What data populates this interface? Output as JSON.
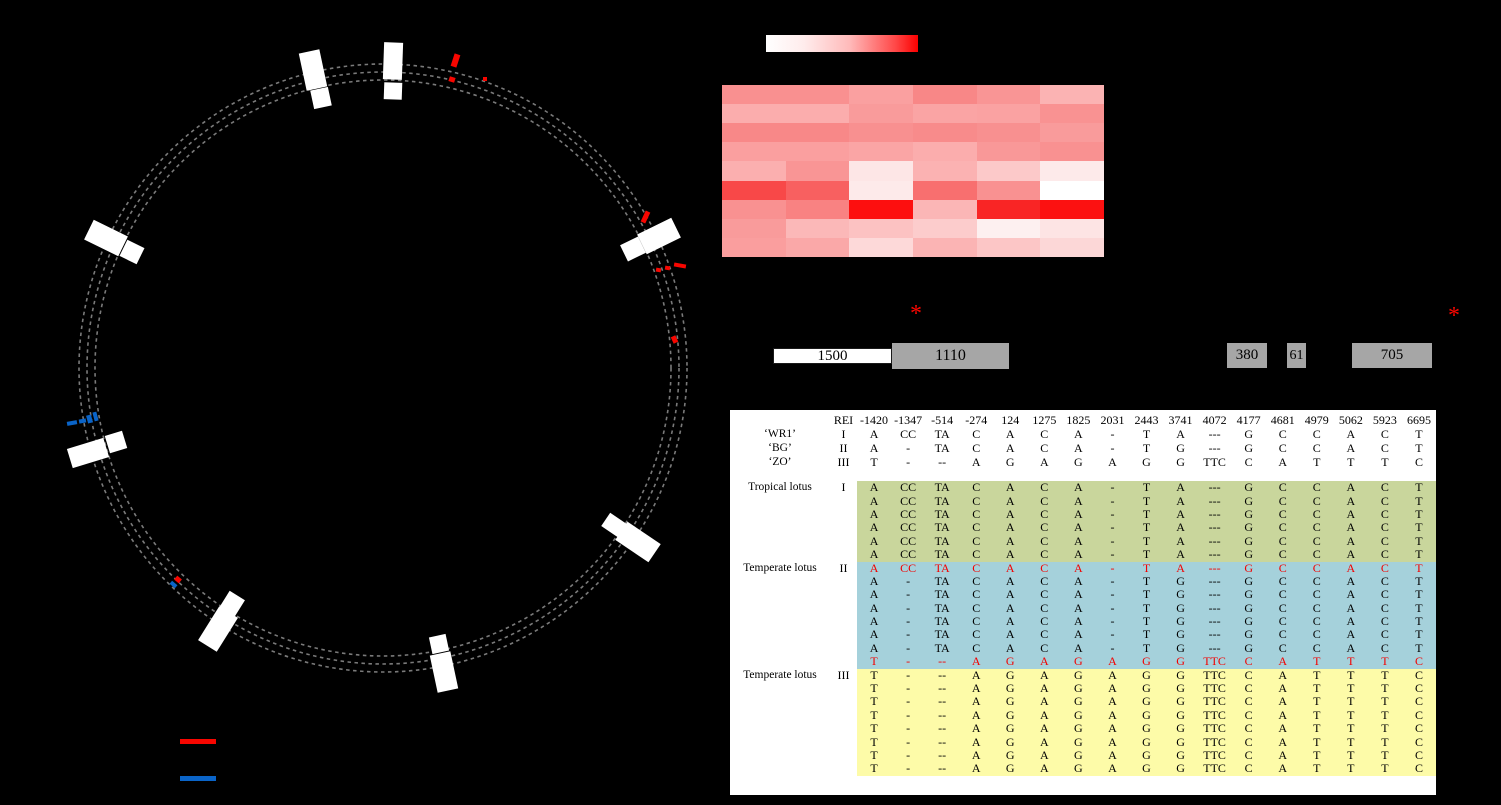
{
  "figure": {
    "background": "#000000"
  },
  "plasmid_map": {
    "ring_color": "#7a7a7a",
    "gene_box_color": "#ffffff",
    "snp_tick_color": "#f80600",
    "indel_tick_color": "#0a64c8"
  },
  "chart_data": {
    "type": "heatmap",
    "n_rows": 9,
    "n_cols": 6,
    "scale": {
      "from": "#ffffff",
      "to": "#ff0000"
    },
    "colors": [
      [
        "#f99090",
        "#f99090",
        "#faa0a0",
        "#f88787",
        "#f99595",
        "#fbb3b3"
      ],
      [
        "#fbadad",
        "#fbadad",
        "#f99b9b",
        "#faa4a4",
        "#faa2a2",
        "#f99292"
      ],
      [
        "#f88888",
        "#f88888",
        "#f89090",
        "#f88b8b",
        "#f89090",
        "#f99b9b"
      ],
      [
        "#fa9f9f",
        "#fa9f9f",
        "#faa5a5",
        "#fbadad",
        "#f99898",
        "#f99191"
      ],
      [
        "#fbafaf",
        "#f99595",
        "#fde6e6",
        "#fbb2b2",
        "#fcc9c9",
        "#fdeaea"
      ],
      [
        "#f84848",
        "#f86060",
        "#fdeaea",
        "#f86f6f",
        "#f99191",
        "#ffffff"
      ],
      [
        "#f99191",
        "#f98282",
        "#fd0f0f",
        "#fbb6b6",
        "#f92525",
        "#fc1111"
      ],
      [
        "#f99b9b",
        "#fbb8b8",
        "#fcc2c2",
        "#fccccc",
        "#fdf0f0",
        "#fde4e4"
      ],
      [
        "#fa9e9e",
        "#faa8a8",
        "#fdd9d9",
        "#fbb4b4",
        "#fcc6c6",
        "#fcd7d7"
      ]
    ],
    "values_0to1": [
      [
        0.44,
        0.44,
        0.37,
        0.47,
        0.42,
        0.3
      ],
      [
        0.32,
        0.32,
        0.39,
        0.36,
        0.36,
        0.43
      ],
      [
        0.47,
        0.47,
        0.44,
        0.46,
        0.44,
        0.39
      ],
      [
        0.38,
        0.38,
        0.35,
        0.32,
        0.4,
        0.43
      ],
      [
        0.31,
        0.42,
        0.1,
        0.3,
        0.21,
        0.08
      ],
      [
        0.72,
        0.62,
        0.08,
        0.56,
        0.43,
        0.0
      ],
      [
        0.43,
        0.49,
        0.94,
        0.29,
        0.85,
        0.93
      ],
      [
        0.39,
        0.28,
        0.24,
        0.2,
        0.06,
        0.11
      ],
      [
        0.38,
        0.34,
        0.15,
        0.29,
        0.22,
        0.16
      ]
    ]
  },
  "gene_diagram": {
    "segments": [
      {
        "label": "1500",
        "fill": "#ffffff"
      },
      {
        "label": "1110",
        "fill": "#a6a6a6"
      },
      {
        "label": "380",
        "fill": "#a6a6a6"
      },
      {
        "label": "61",
        "fill": "#a6a6a6"
      },
      {
        "label": "705",
        "fill": "#a6a6a6"
      }
    ],
    "asterisk": "*",
    "asterisk_color": "#fb0600"
  },
  "alignment": {
    "highlight_color": "#f20000",
    "header": {
      "ref_label": "REI",
      "positions": [
        "-1420",
        "-1347",
        "-514",
        "-274",
        "124",
        "1275",
        "1825",
        "2031",
        "2443",
        "3741",
        "4072",
        "4177",
        "4681",
        "4979",
        "5062",
        "5923",
        "6695"
      ]
    },
    "reference_rows": [
      {
        "name": "‘WR1’",
        "haplotype": "I",
        "cells": [
          "A",
          "CC",
          "TA",
          "C",
          "A",
          "C",
          "A",
          "-",
          "T",
          "A",
          "---",
          "G",
          "C",
          "C",
          "A",
          "C",
          "T"
        ]
      },
      {
        "name": "‘BG’",
        "haplotype": "II",
        "cells": [
          "A",
          "-",
          "TA",
          "C",
          "A",
          "C",
          "A",
          "-",
          "T",
          "G",
          "---",
          "G",
          "C",
          "C",
          "A",
          "C",
          "T"
        ]
      },
      {
        "name": "‘ZO’",
        "haplotype": "III",
        "cells": [
          "T",
          "-",
          "--",
          "A",
          "G",
          "A",
          "G",
          "A",
          "G",
          "G",
          "TTC",
          "C",
          "A",
          "T",
          "T",
          "T",
          "C"
        ]
      }
    ],
    "groups": [
      {
        "label": "Tropical lotus",
        "haplotype": "I",
        "bg": "#c9d69c",
        "rows": [
          {
            "highlight": false,
            "cells": [
              "A",
              "CC",
              "TA",
              "C",
              "A",
              "C",
              "A",
              "-",
              "T",
              "A",
              "---",
              "G",
              "C",
              "C",
              "A",
              "C",
              "T"
            ]
          },
          {
            "highlight": false,
            "cells": [
              "A",
              "CC",
              "TA",
              "C",
              "A",
              "C",
              "A",
              "-",
              "T",
              "A",
              "---",
              "G",
              "C",
              "C",
              "A",
              "C",
              "T"
            ]
          },
          {
            "highlight": false,
            "cells": [
              "A",
              "CC",
              "TA",
              "C",
              "A",
              "C",
              "A",
              "-",
              "T",
              "A",
              "---",
              "G",
              "C",
              "C",
              "A",
              "C",
              "T"
            ]
          },
          {
            "highlight": false,
            "cells": [
              "A",
              "CC",
              "TA",
              "C",
              "A",
              "C",
              "A",
              "-",
              "T",
              "A",
              "---",
              "G",
              "C",
              "C",
              "A",
              "C",
              "T"
            ]
          },
          {
            "highlight": false,
            "cells": [
              "A",
              "CC",
              "TA",
              "C",
              "A",
              "C",
              "A",
              "-",
              "T",
              "A",
              "---",
              "G",
              "C",
              "C",
              "A",
              "C",
              "T"
            ]
          },
          {
            "highlight": false,
            "cells": [
              "A",
              "CC",
              "TA",
              "C",
              "A",
              "C",
              "A",
              "-",
              "T",
              "A",
              "---",
              "G",
              "C",
              "C",
              "A",
              "C",
              "T"
            ]
          }
        ]
      },
      {
        "label": "Temperate lotus",
        "haplotype": "II",
        "bg": "#a5d1db",
        "rows": [
          {
            "highlight": true,
            "cells": [
              "A",
              "CC",
              "TA",
              "C",
              "A",
              "C",
              "A",
              "-",
              "T",
              "A",
              "---",
              "G",
              "C",
              "C",
              "A",
              "C",
              "T"
            ]
          },
          {
            "highlight": false,
            "cells": [
              "A",
              "-",
              "TA",
              "C",
              "A",
              "C",
              "A",
              "-",
              "T",
              "G",
              "---",
              "G",
              "C",
              "C",
              "A",
              "C",
              "T"
            ]
          },
          {
            "highlight": false,
            "cells": [
              "A",
              "-",
              "TA",
              "C",
              "A",
              "C",
              "A",
              "-",
              "T",
              "G",
              "---",
              "G",
              "C",
              "C",
              "A",
              "C",
              "T"
            ]
          },
          {
            "highlight": false,
            "cells": [
              "A",
              "-",
              "TA",
              "C",
              "A",
              "C",
              "A",
              "-",
              "T",
              "G",
              "---",
              "G",
              "C",
              "C",
              "A",
              "C",
              "T"
            ]
          },
          {
            "highlight": false,
            "cells": [
              "A",
              "-",
              "TA",
              "C",
              "A",
              "C",
              "A",
              "-",
              "T",
              "G",
              "---",
              "G",
              "C",
              "C",
              "A",
              "C",
              "T"
            ]
          },
          {
            "highlight": false,
            "cells": [
              "A",
              "-",
              "TA",
              "C",
              "A",
              "C",
              "A",
              "-",
              "T",
              "G",
              "---",
              "G",
              "C",
              "C",
              "A",
              "C",
              "T"
            ]
          },
          {
            "highlight": false,
            "cells": [
              "A",
              "-",
              "TA",
              "C",
              "A",
              "C",
              "A",
              "-",
              "T",
              "G",
              "---",
              "G",
              "C",
              "C",
              "A",
              "C",
              "T"
            ]
          },
          {
            "highlight": true,
            "cells": [
              "T",
              "-",
              "--",
              "A",
              "G",
              "A",
              "G",
              "A",
              "G",
              "G",
              "TTC",
              "C",
              "A",
              "T",
              "T",
              "T",
              "C"
            ]
          }
        ]
      },
      {
        "label": "Temperate lotus",
        "haplotype": "III",
        "bg": "#fdfba8",
        "rows": [
          {
            "highlight": false,
            "cells": [
              "T",
              "-",
              "--",
              "A",
              "G",
              "A",
              "G",
              "A",
              "G",
              "G",
              "TTC",
              "C",
              "A",
              "T",
              "T",
              "T",
              "C"
            ]
          },
          {
            "highlight": false,
            "cells": [
              "T",
              "-",
              "--",
              "A",
              "G",
              "A",
              "G",
              "A",
              "G",
              "G",
              "TTC",
              "C",
              "A",
              "T",
              "T",
              "T",
              "C"
            ]
          },
          {
            "highlight": false,
            "cells": [
              "T",
              "-",
              "--",
              "A",
              "G",
              "A",
              "G",
              "A",
              "G",
              "G",
              "TTC",
              "C",
              "A",
              "T",
              "T",
              "T",
              "C"
            ]
          },
          {
            "highlight": false,
            "cells": [
              "T",
              "-",
              "--",
              "A",
              "G",
              "A",
              "G",
              "A",
              "G",
              "G",
              "TTC",
              "C",
              "A",
              "T",
              "T",
              "T",
              "C"
            ]
          },
          {
            "highlight": false,
            "cells": [
              "T",
              "-",
              "--",
              "A",
              "G",
              "A",
              "G",
              "A",
              "G",
              "G",
              "TTC",
              "C",
              "A",
              "T",
              "T",
              "T",
              "C"
            ]
          },
          {
            "highlight": false,
            "cells": [
              "T",
              "-",
              "--",
              "A",
              "G",
              "A",
              "G",
              "A",
              "G",
              "G",
              "TTC",
              "C",
              "A",
              "T",
              "T",
              "T",
              "C"
            ]
          },
          {
            "highlight": false,
            "cells": [
              "T",
              "-",
              "--",
              "A",
              "G",
              "A",
              "G",
              "A",
              "G",
              "G",
              "TTC",
              "C",
              "A",
              "T",
              "T",
              "T",
              "C"
            ]
          },
          {
            "highlight": false,
            "cells": [
              "T",
              "-",
              "--",
              "A",
              "G",
              "A",
              "G",
              "A",
              "G",
              "G",
              "TTC",
              "C",
              "A",
              "T",
              "T",
              "T",
              "C"
            ]
          }
        ]
      }
    ]
  }
}
